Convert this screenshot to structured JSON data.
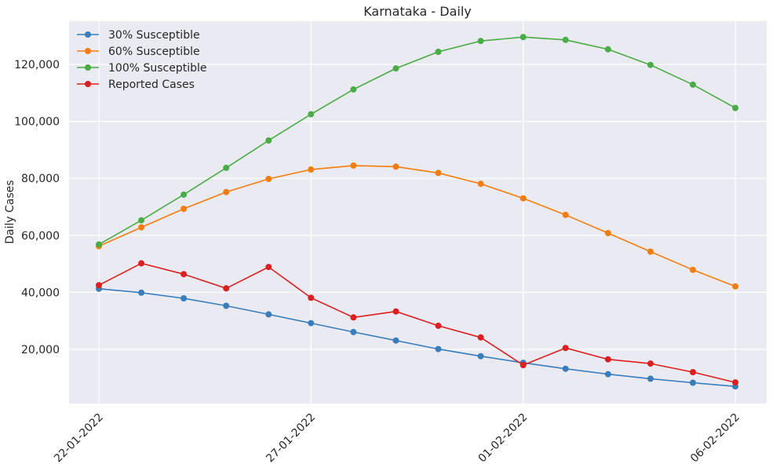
{
  "chart_data": {
    "type": "line",
    "title": "Karnataka - Daily",
    "xlabel": "",
    "ylabel": "Daily Cases",
    "x": [
      "22-01-2022",
      "23-01-2022",
      "24-01-2022",
      "25-01-2022",
      "26-01-2022",
      "27-01-2022",
      "28-01-2022",
      "29-01-2022",
      "30-01-2022",
      "31-01-2022",
      "01-02-2022",
      "02-02-2022",
      "03-02-2022",
      "04-02-2022",
      "05-02-2022",
      "06-02-2022"
    ],
    "xticks": [
      "22-01-2022",
      "27-01-2022",
      "01-02-2022",
      "06-02-2022"
    ],
    "yticks": [
      20000,
      40000,
      60000,
      80000,
      100000,
      120000
    ],
    "ytick_labels": [
      "20,000",
      "40,000",
      "60,000",
      "80,000",
      "100,000",
      "120,000"
    ],
    "ylim": [
      1000,
      135000
    ],
    "grid": true,
    "legend_position": "top-left",
    "background_color": "#eaeaf2",
    "series": [
      {
        "name": "30% Susceptible",
        "color": "#3a7dbb",
        "values": [
          41300,
          39900,
          37900,
          35300,
          32300,
          29200,
          26100,
          23100,
          20100,
          17600,
          15300,
          13200,
          11300,
          9700,
          8300,
          7000
        ]
      },
      {
        "name": "60% Susceptible",
        "color": "#f47d0e",
        "values": [
          56200,
          62800,
          69300,
          75200,
          79800,
          83100,
          84500,
          84100,
          81900,
          78100,
          73000,
          67200,
          60800,
          54300,
          47900,
          42100
        ]
      },
      {
        "name": "100% Susceptible",
        "color": "#4aac45",
        "values": [
          56800,
          65300,
          74300,
          83700,
          93300,
          102500,
          111200,
          118600,
          124400,
          128200,
          129600,
          128600,
          125300,
          119800,
          112900,
          104700
        ]
      },
      {
        "name": "Reported Cases",
        "color": "#dc1f1f",
        "values": [
          42500,
          50200,
          46400,
          41400,
          48900,
          38100,
          31200,
          33300,
          28300,
          24200,
          14500,
          20500,
          16500,
          15000,
          12000,
          8400
        ]
      }
    ]
  }
}
